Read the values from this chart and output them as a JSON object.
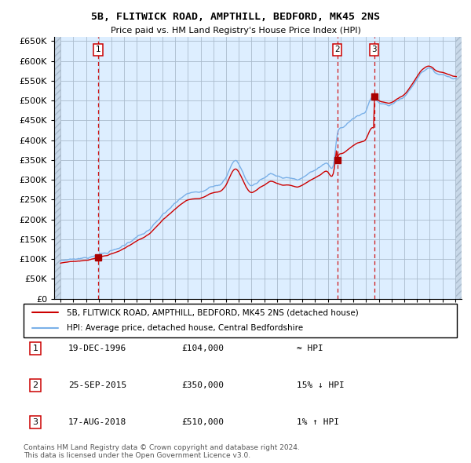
{
  "title": "5B, FLITWICK ROAD, AMPTHILL, BEDFORD, MK45 2NS",
  "subtitle": "Price paid vs. HM Land Registry's House Price Index (HPI)",
  "sale_prices": [
    104000,
    350000,
    510000
  ],
  "sale_dates_num": [
    1996.97,
    2015.73,
    2018.63
  ],
  "hpi_color": "#7ab0e8",
  "sale_line_color": "#cc0000",
  "sale_dot_color": "#aa0000",
  "vline_color": "#cc0000",
  "bg_color": "#ddeeff",
  "grid_color": "#aabbcc",
  "ylim": [
    0,
    660000
  ],
  "xlim_start": 1993.5,
  "xlim_end": 2025.5,
  "legend_entries": [
    "5B, FLITWICK ROAD, AMPTHILL, BEDFORD, MK45 2NS (detached house)",
    "HPI: Average price, detached house, Central Bedfordshire"
  ],
  "table_rows": [
    {
      "num": "1",
      "date": "19-DEC-1996",
      "price": "£104,000",
      "hpi_rel": "≈ HPI"
    },
    {
      "num": "2",
      "date": "25-SEP-2015",
      "price": "£350,000",
      "hpi_rel": "15% ↓ HPI"
    },
    {
      "num": "3",
      "date": "17-AUG-2018",
      "price": "£510,000",
      "hpi_rel": "1% ↑ HPI"
    }
  ],
  "footer": "Contains HM Land Registry data © Crown copyright and database right 2024.\nThis data is licensed under the Open Government Licence v3.0."
}
